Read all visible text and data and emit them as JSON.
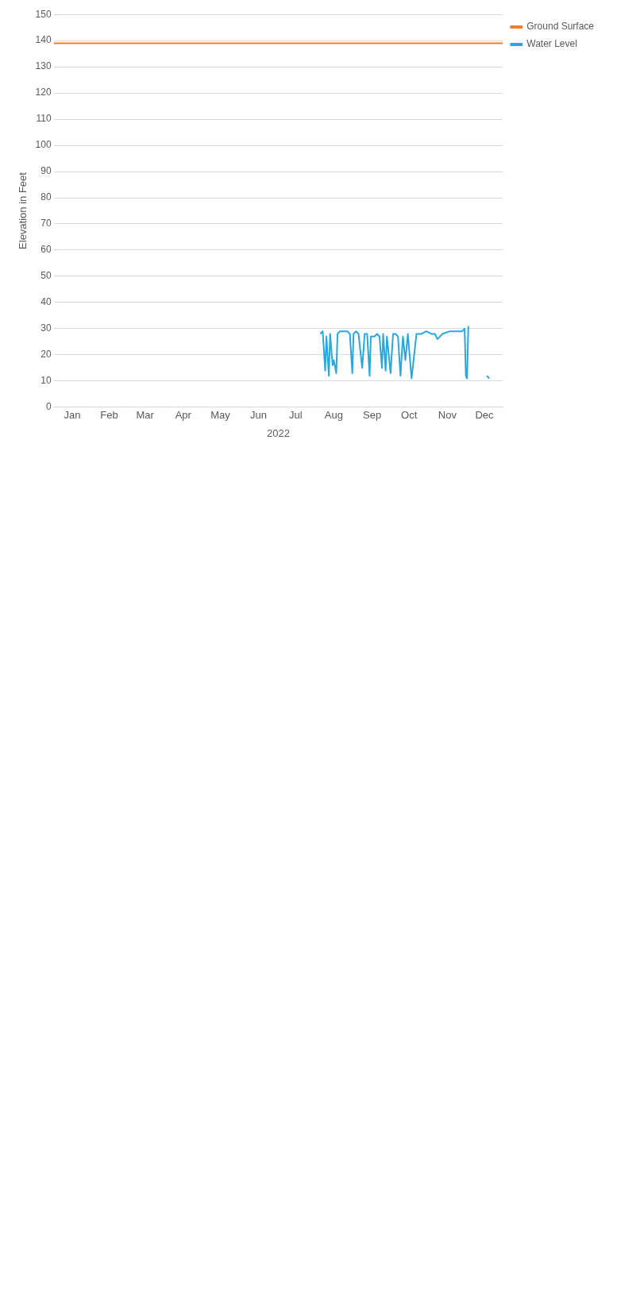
{
  "chart_data": {
    "type": "line",
    "xlabel": "2022",
    "ylabel": "Elevation in Feet",
    "xlim": [
      "2022-01-01",
      "2022-12-31"
    ],
    "xticks": [
      {
        "value": "2022-01-16",
        "label": "Jan"
      },
      {
        "value": "2022-02-15",
        "label": "Feb"
      },
      {
        "value": "2022-03-16",
        "label": "Mar"
      },
      {
        "value": "2022-04-16",
        "label": "Apr"
      },
      {
        "value": "2022-05-16",
        "label": "May"
      },
      {
        "value": "2022-06-16",
        "label": "Jun"
      },
      {
        "value": "2022-07-16",
        "label": "Jul"
      },
      {
        "value": "2022-08-16",
        "label": "Aug"
      },
      {
        "value": "2022-09-16",
        "label": "Sep"
      },
      {
        "value": "2022-10-16",
        "label": "Oct"
      },
      {
        "value": "2022-11-16",
        "label": "Nov"
      },
      {
        "value": "2022-12-16",
        "label": "Dec"
      }
    ],
    "ylim": [
      0,
      150
    ],
    "yticks": [
      0,
      10,
      20,
      30,
      40,
      50,
      60,
      70,
      80,
      90,
      100,
      110,
      120,
      130,
      140,
      150
    ],
    "grid": "y",
    "legend": "right",
    "marker": "none",
    "line_style": "solid",
    "series": [
      {
        "name": "Ground Surface",
        "color": "#ed7d31",
        "x": [
          "2022-01-01",
          "2022-12-31"
        ],
        "values": [
          139,
          139
        ]
      },
      {
        "name": "Water Level",
        "color": "#2aa7dc",
        "x": [
          "2022-08-05",
          "2022-08-07",
          "2022-08-09",
          "2022-08-10",
          "2022-08-12",
          "2022-08-13",
          "2022-08-15",
          "2022-08-16",
          "2022-08-18",
          "2022-08-19",
          "2022-08-21",
          "2022-08-24",
          "2022-08-27",
          "2022-08-29",
          "2022-08-31",
          "2022-09-01",
          "2022-09-03",
          "2022-09-05",
          "2022-09-08",
          "2022-09-10",
          "2022-09-12",
          "2022-09-14",
          "2022-09-15",
          "2022-09-18",
          "2022-09-20",
          "2022-09-22",
          "2022-09-24",
          "2022-09-25",
          "2022-09-27",
          "2022-09-28",
          "2022-10-01",
          "2022-10-03",
          "2022-10-05",
          "2022-10-07",
          "2022-10-09",
          "2022-10-11",
          "2022-10-13",
          "2022-10-15",
          "2022-10-18",
          "2022-10-22",
          "2022-10-26",
          "2022-10-30",
          "2022-11-03",
          "2022-11-06",
          "2022-11-08",
          "2022-11-12",
          "2022-11-18",
          "2022-11-24",
          "2022-11-28",
          "2022-11-30",
          "2022-12-01",
          "2022-12-02",
          "2022-12-03",
          null,
          "2022-12-18",
          "2022-12-20"
        ],
        "values": [
          28,
          29,
          14,
          27,
          12,
          28,
          16,
          18,
          13,
          28,
          29,
          29,
          29,
          28,
          13,
          28,
          29,
          28,
          15,
          28,
          28,
          12,
          27,
          27,
          28,
          27,
          15,
          28,
          14,
          27,
          13,
          28,
          28,
          27,
          12,
          27,
          18,
          28,
          11,
          28,
          28,
          29,
          28,
          28,
          26,
          28,
          29,
          29,
          29,
          30,
          12,
          11,
          31,
          null,
          12,
          11
        ]
      }
    ]
  }
}
